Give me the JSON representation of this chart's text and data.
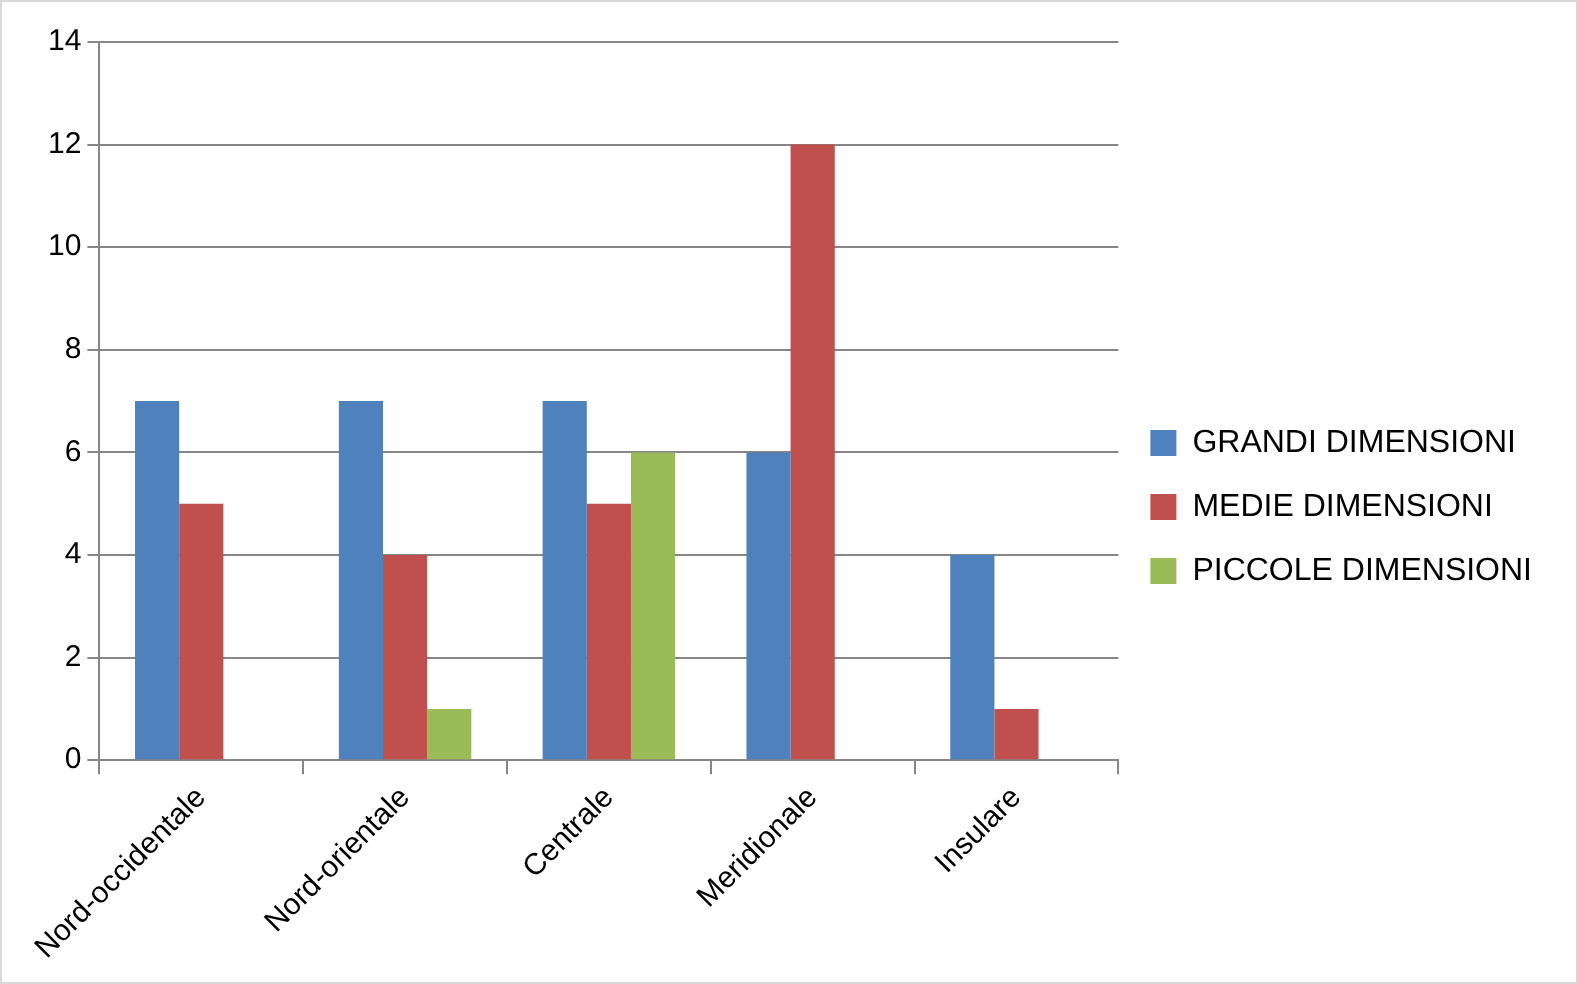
{
  "chart_data": {
    "type": "bar",
    "categories": [
      "Nord-occidentale",
      "Nord-orientale",
      "Centrale",
      "Meridionale",
      "Insulare"
    ],
    "series": [
      {
        "name": "GRANDI DIMENSIONI",
        "color": "#4f81bd",
        "values": [
          7,
          7,
          7,
          6,
          4
        ]
      },
      {
        "name": "MEDIE DIMENSIONI",
        "color": "#c0504d",
        "values": [
          5,
          4,
          5,
          12,
          1
        ]
      },
      {
        "name": "PICCOLE DIMENSIONI",
        "color": "#9bbb59",
        "values": [
          null,
          1,
          6,
          null,
          null
        ]
      }
    ],
    "ylim": [
      0,
      14
    ],
    "yticks": [
      0,
      2,
      4,
      6,
      8,
      10,
      12,
      14
    ],
    "grid": "y",
    "legend": "right"
  }
}
